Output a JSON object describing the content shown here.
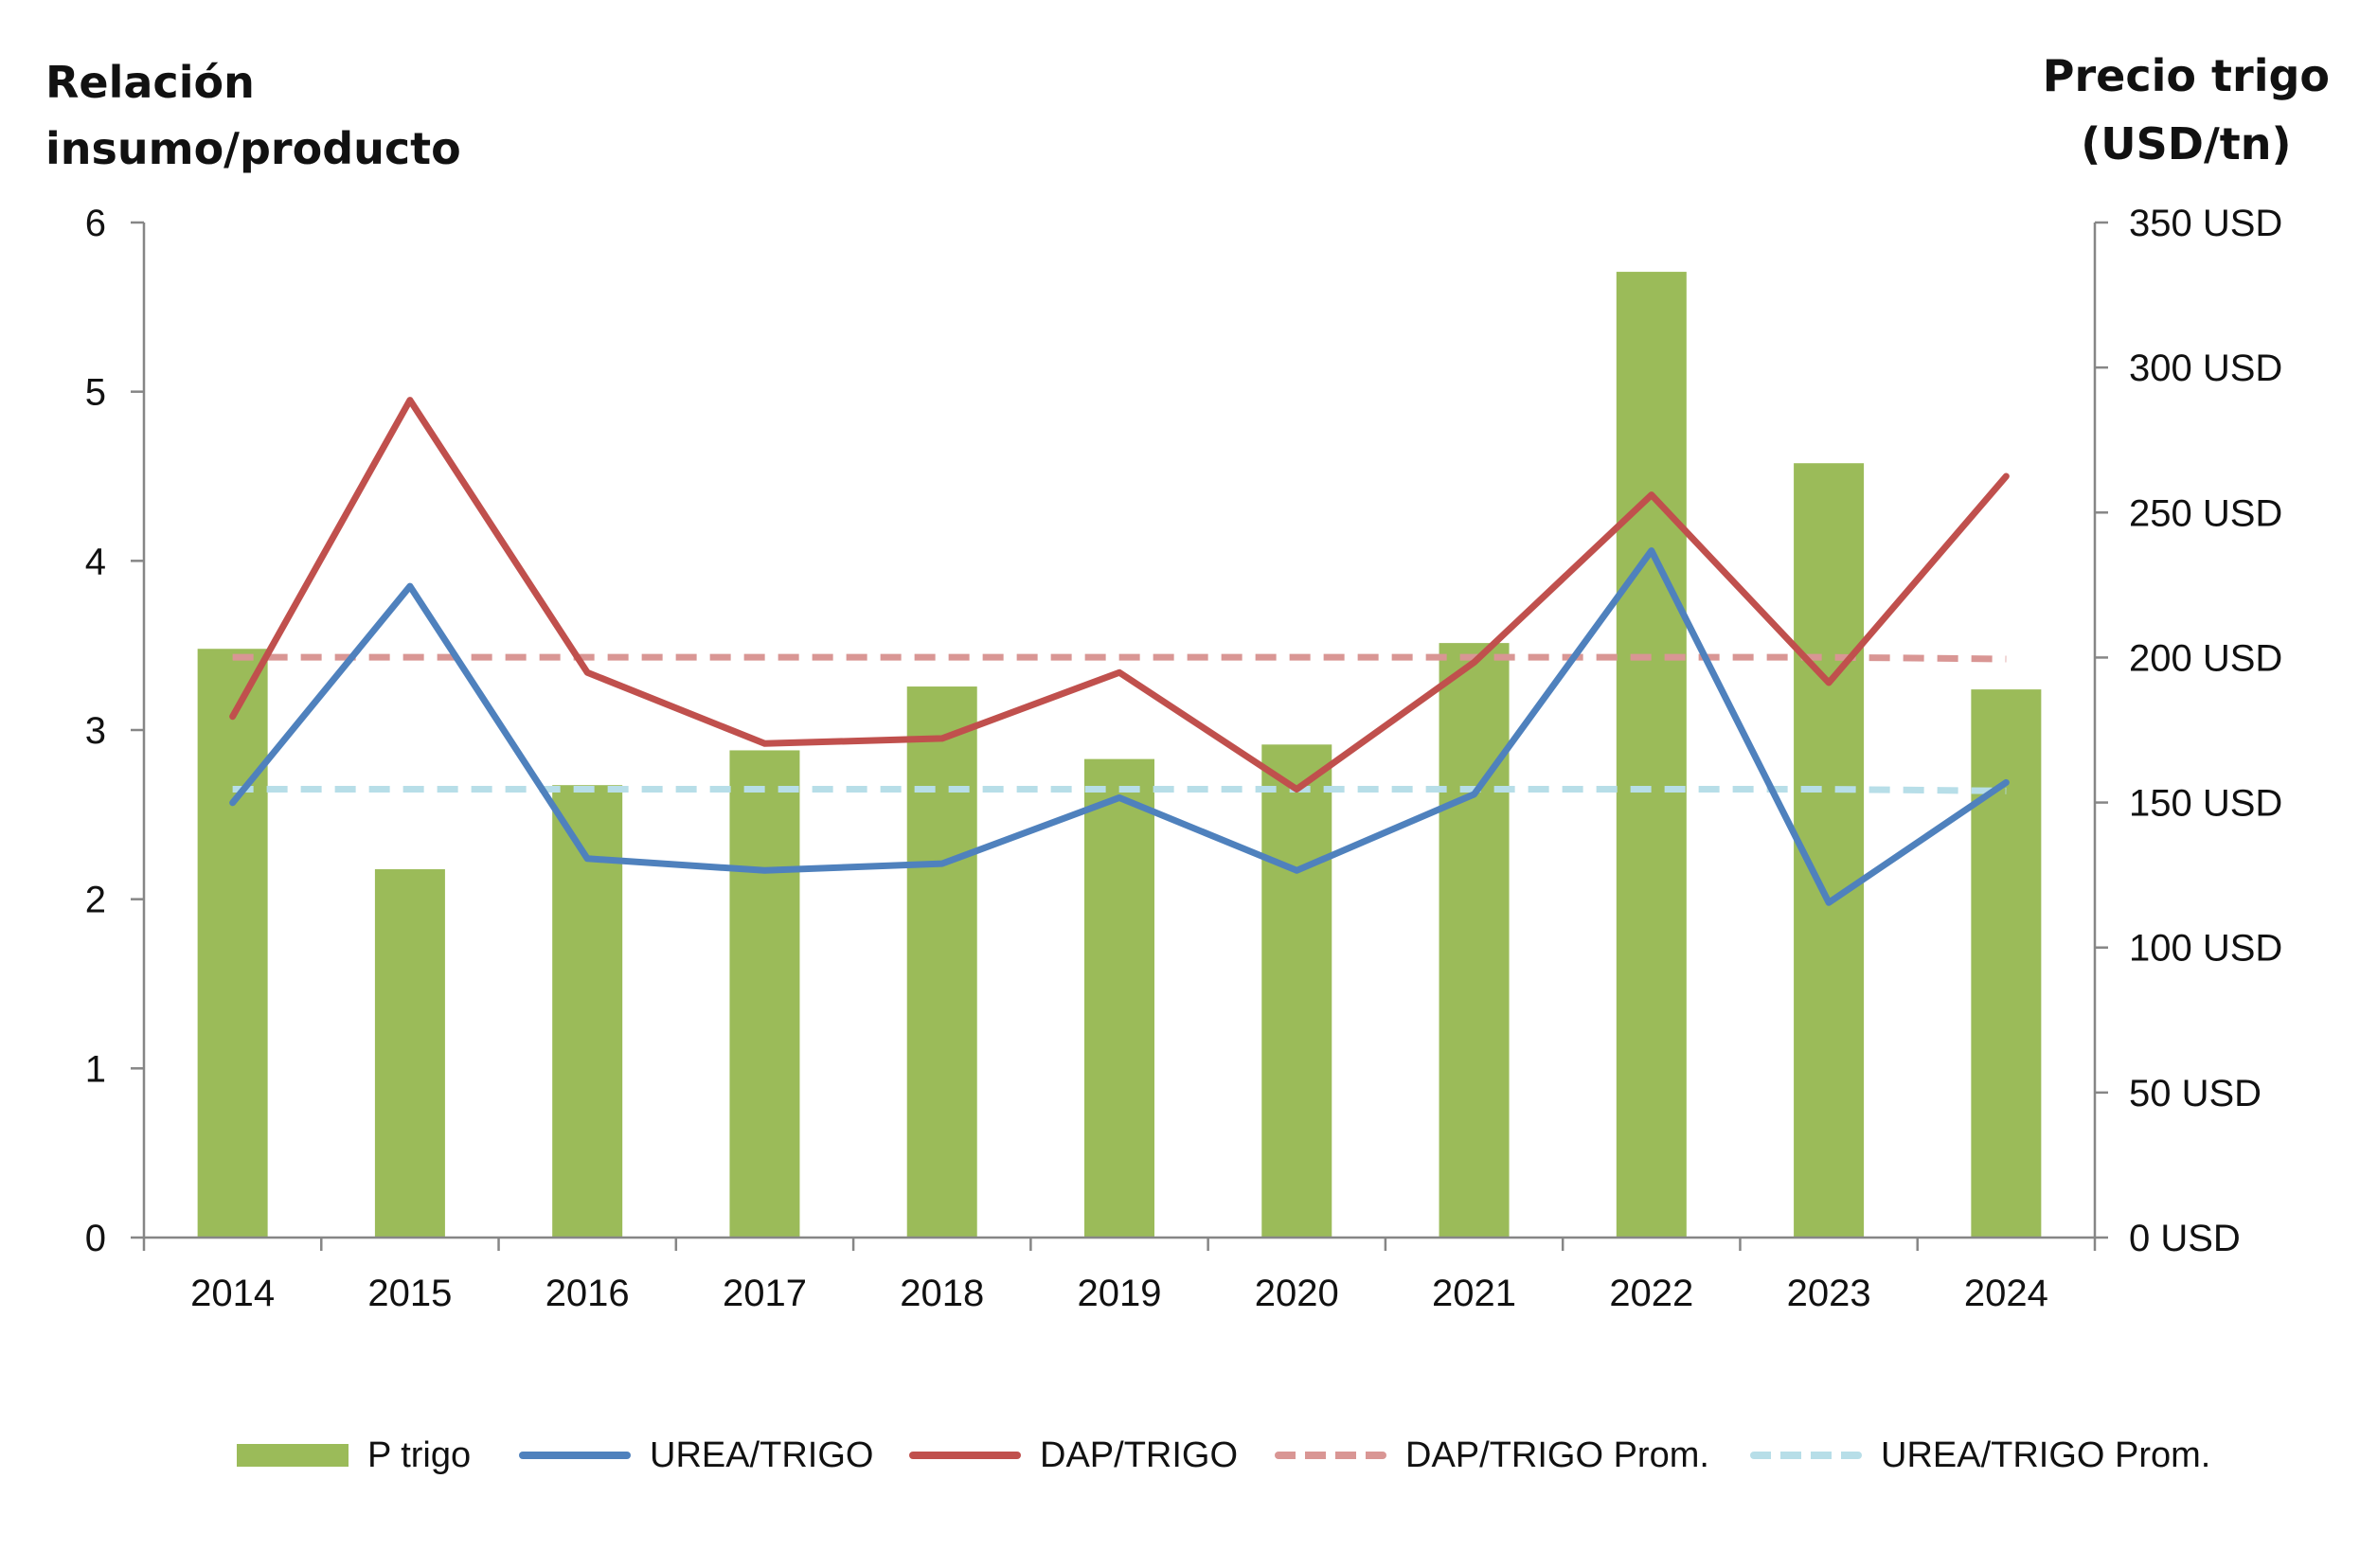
{
  "chart_data": {
    "type": "bar",
    "left_axis_title": "Relación\ninsumo/producto",
    "right_axis_title": "Precio trigo\n(USD/tn)",
    "categories": [
      "2014",
      "2015",
      "2016",
      "2017",
      "2018",
      "2019",
      "2020",
      "2021",
      "2022",
      "2023",
      "2024"
    ],
    "y_left": {
      "range": [
        0,
        6
      ],
      "ticks": [
        "0",
        "1",
        "2",
        "3",
        "4",
        "5",
        "6"
      ]
    },
    "y_right": {
      "range": [
        0,
        350
      ],
      "ticks": [
        "0 USD",
        "50 USD",
        "100 USD",
        "150 USD",
        "200 USD",
        "250 USD",
        "300 USD",
        "350 USD"
      ]
    },
    "series": [
      {
        "name": "P trigo",
        "type": "bar",
        "axis": "right",
        "color": "#9bbb59",
        "values": [
          203,
          127,
          156,
          168,
          190,
          165,
          170,
          205,
          333,
          267,
          189
        ]
      },
      {
        "name": "UREA/TRIGO",
        "type": "line",
        "axis": "left",
        "color": "#4f81bd",
        "dash": false,
        "values": [
          2.57,
          3.85,
          2.24,
          2.17,
          2.21,
          2.6,
          2.17,
          2.62,
          4.06,
          1.98,
          2.69
        ]
      },
      {
        "name": "DAP/TRIGO",
        "type": "line",
        "axis": "left",
        "color": "#c0504d",
        "dash": false,
        "values": [
          3.08,
          4.95,
          3.34,
          2.92,
          2.95,
          3.34,
          2.65,
          3.4,
          4.39,
          3.28,
          4.5
        ]
      },
      {
        "name": "DAP/TRIGO Prom.",
        "type": "line",
        "axis": "left",
        "color": "#d99694",
        "dash": true,
        "values": [
          3.43,
          3.43,
          3.43,
          3.43,
          3.43,
          3.43,
          3.43,
          3.43,
          3.43,
          3.43,
          3.42
        ]
      },
      {
        "name": "UREA/TRIGO Prom.",
        "type": "line",
        "axis": "left",
        "color": "#b7dee8",
        "dash": true,
        "values": [
          2.65,
          2.65,
          2.65,
          2.65,
          2.65,
          2.65,
          2.65,
          2.65,
          2.65,
          2.65,
          2.64
        ]
      }
    ],
    "grid": false,
    "legend_position": "bottom"
  }
}
